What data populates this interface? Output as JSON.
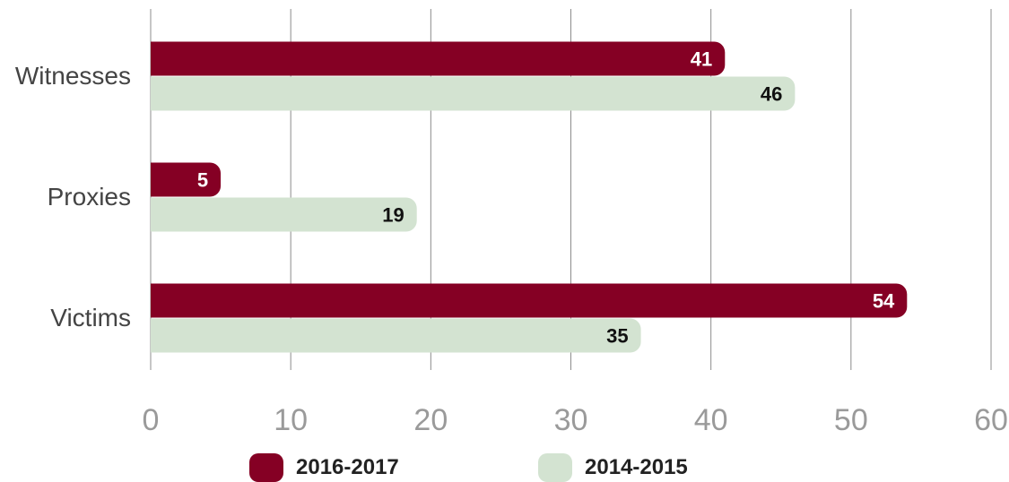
{
  "chart_data": {
    "type": "bar",
    "orientation": "horizontal",
    "categories": [
      "Witnesses",
      "Proxies",
      "Victims"
    ],
    "series": [
      {
        "name": "2016-2017",
        "values": [
          41,
          5,
          54
        ],
        "color": "#850024",
        "label_color": "#ffffff"
      },
      {
        "name": "2014-2015",
        "values": [
          46,
          19,
          35
        ],
        "color": "#d3e3d1",
        "label_color": "#111111"
      }
    ],
    "xlim": [
      0,
      60
    ],
    "xticks": [
      "0",
      "10",
      "20",
      "30",
      "40",
      "50",
      "60"
    ],
    "grid": true,
    "legend_placement": "bottom",
    "title": "",
    "xlabel": "",
    "ylabel": ""
  }
}
